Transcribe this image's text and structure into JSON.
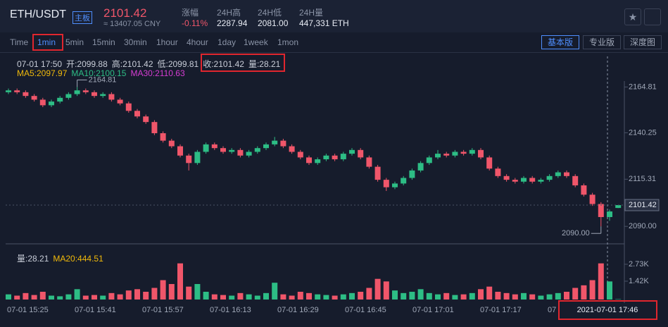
{
  "header": {
    "pair": "ETH/USDT",
    "badge": "主板",
    "price": "2101.42",
    "cny": "≈ 13407.05 CNY",
    "stats": [
      {
        "label": "涨幅",
        "value": "-0.11%"
      },
      {
        "label": "24H高",
        "value": "2287.94"
      },
      {
        "label": "24H低",
        "value": "2081.00"
      },
      {
        "label": "24H量",
        "value": "447,331 ETH"
      }
    ]
  },
  "toolbar": {
    "intervals": [
      "Time",
      "1min",
      "5min",
      "15min",
      "30min",
      "1hour",
      "4hour",
      "1day",
      "1week",
      "1mon"
    ],
    "selected_index": 1,
    "views": [
      "基本版",
      "专业版",
      "深度图"
    ],
    "active_view": 0
  },
  "chart_data": {
    "type": "candlestick",
    "info": [
      "07-01 17:50",
      "开:2099.88",
      "高:2101.42",
      "低:2099.81",
      "收:2101.42",
      "量:28.21"
    ],
    "ma_labels": [
      {
        "text": "MA5:2097.97",
        "color": "#f0b90b"
      },
      {
        "text": "MA10:2100.15",
        "color": "#2dbd85"
      },
      {
        "text": "MA30:2110.63",
        "color": "#d63dd3"
      }
    ],
    "volume_labels": [
      {
        "text": "量:28.21",
        "color": "#c8cdd8"
      },
      {
        "text": "MA20:444.51",
        "color": "#f0b90b"
      }
    ],
    "up_color": "#2dbd85",
    "down_color": "#f0566a",
    "open": [
      2162,
      2163,
      2162,
      2160,
      2158,
      2155,
      2157,
      2159,
      2161,
      2163,
      2162,
      2160,
      2161,
      2158,
      2156,
      2152,
      2149,
      2146,
      2140,
      2136,
      2133,
      2128,
      2124,
      2130,
      2134,
      2132,
      2130,
      2131,
      2128,
      2130,
      2132,
      2134,
      2136,
      2133,
      2130,
      2127,
      2124,
      2126,
      2128,
      2126,
      2129,
      2131,
      2127,
      2122,
      2115,
      2111,
      2113,
      2116,
      2120,
      2124,
      2127,
      2129,
      2128,
      2130,
      2129,
      2131,
      2127,
      2121,
      2117,
      2115,
      2114,
      2116,
      2114,
      2115,
      2117,
      2119,
      2117,
      2112,
      2107,
      2102,
      2095,
      2099.88
    ],
    "high": [
      2164,
      2164,
      2163,
      2161,
      2159,
      2158,
      2160,
      2162,
      2164.81,
      2164,
      2163,
      2162,
      2162,
      2159,
      2157,
      2153,
      2150,
      2147,
      2141,
      2137,
      2134,
      2129,
      2131,
      2135,
      2135,
      2133,
      2132,
      2132,
      2131,
      2133,
      2135,
      2138,
      2137,
      2134,
      2131,
      2128,
      2127,
      2129,
      2129,
      2130,
      2132,
      2132,
      2128,
      2123,
      2116,
      2114,
      2117,
      2121,
      2125,
      2128,
      2131,
      2130,
      2131,
      2131,
      2132,
      2132,
      2128,
      2122,
      2118,
      2116,
      2117,
      2117,
      2116,
      2118,
      2120,
      2120,
      2118,
      2113,
      2108,
      2103,
      2099,
      2101.42
    ],
    "low": [
      2161,
      2161,
      2159,
      2157,
      2154,
      2154,
      2156,
      2158,
      2160,
      2161,
      2159,
      2159,
      2157,
      2155,
      2151,
      2148,
      2145,
      2139,
      2135,
      2132,
      2127,
      2120,
      2123,
      2129,
      2131,
      2129,
      2129,
      2127,
      2127,
      2129,
      2131,
      2133,
      2132,
      2129,
      2126,
      2123,
      2123,
      2125,
      2125,
      2125,
      2128,
      2126,
      2121,
      2114,
      2109,
      2110,
      2112,
      2115,
      2119,
      2123,
      2126,
      2127,
      2127,
      2128,
      2128,
      2126,
      2120,
      2116,
      2114,
      2113,
      2113,
      2113,
      2113,
      2114,
      2116,
      2116,
      2111,
      2106,
      2101,
      2090,
      2093,
      2099.81
    ],
    "close": [
      2163,
      2162,
      2160,
      2158,
      2155,
      2157,
      2159,
      2161,
      2163,
      2162,
      2160,
      2161,
      2158,
      2156,
      2152,
      2149,
      2146,
      2140,
      2136,
      2133,
      2128,
      2124,
      2130,
      2134,
      2132,
      2130,
      2131,
      2128,
      2130,
      2132,
      2134,
      2136,
      2133,
      2130,
      2127,
      2124,
      2126,
      2128,
      2126,
      2129,
      2131,
      2127,
      2122,
      2115,
      2111,
      2113,
      2116,
      2120,
      2124,
      2127,
      2129,
      2128,
      2130,
      2129,
      2131,
      2127,
      2121,
      2117,
      2115,
      2114,
      2116,
      2114,
      2115,
      2117,
      2119,
      2117,
      2112,
      2107,
      2102,
      2095,
      2098,
      2101.42
    ],
    "volume": [
      400,
      300,
      500,
      350,
      600,
      300,
      250,
      400,
      800,
      300,
      350,
      300,
      500,
      400,
      700,
      800,
      600,
      900,
      1500,
      1200,
      2800,
      1000,
      1200,
      600,
      400,
      350,
      300,
      500,
      400,
      300,
      500,
      1300,
      400,
      300,
      600,
      500,
      400,
      350,
      300,
      400,
      500,
      600,
      900,
      1600,
      1400,
      700,
      500,
      600,
      800,
      500,
      400,
      500,
      350,
      400,
      500,
      800,
      1000,
      600,
      500,
      400,
      500,
      400,
      300,
      400,
      500,
      600,
      900,
      1100,
      1500,
      2800,
      1400,
      28.21
    ],
    "ylim": [
      2081,
      2168
    ],
    "yticks": [
      2164.81,
      2140.25,
      2115.31,
      {
        "value": 2090,
        "label": "2090.00"
      }
    ],
    "last_price": 2101.42,
    "max_label": {
      "value": 2164.81,
      "label": "2164.81",
      "index": 8
    },
    "min_label": {
      "value": 2090,
      "label": "2090.00",
      "index": 69
    },
    "vlim": [
      0,
      3820
    ],
    "vticks": [
      {
        "value": 2730,
        "label": "2.73K"
      },
      {
        "value": 1420,
        "label": "1.42K"
      }
    ],
    "x_labels": [
      "07-01 15:25",
      "07-01 15:41",
      "07-01 15:57",
      "07-01 16:13",
      "07-01 16:29",
      "07-01 16:45",
      "07-01 17:01",
      "07-01 17:17",
      "07"
    ],
    "crosshair_label": "2021-07-01 17:46"
  }
}
